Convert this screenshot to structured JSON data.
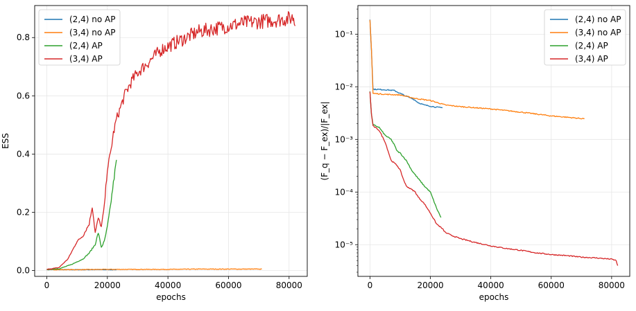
{
  "chart_data": [
    {
      "type": "line",
      "xlabel": "epochs",
      "ylabel": "ESS",
      "xlim": [
        -4000,
        86000
      ],
      "ylim": [
        -0.02,
        0.91
      ],
      "xticks": [
        0,
        20000,
        40000,
        60000,
        80000
      ],
      "xtick_labels": [
        "0",
        "20000",
        "40000",
        "60000",
        "80000"
      ],
      "yticks": [
        0.0,
        0.2,
        0.4,
        0.6,
        0.8
      ],
      "ytick_labels": [
        "0.0",
        "0.2",
        "0.4",
        "0.6",
        "0.8"
      ],
      "grid": true,
      "legend_position": "top-left",
      "series": [
        {
          "name": "(2,4) no AP",
          "color": "#1f77b4",
          "x": [
            0,
            5000,
            10000,
            15000,
            20000,
            23000
          ],
          "y": [
            0.003,
            0.003,
            0.003,
            0.003,
            0.003,
            0.003
          ]
        },
        {
          "name": "(3,4) no AP",
          "color": "#ff7f0e",
          "x": [
            0,
            10000,
            20000,
            30000,
            40000,
            50000,
            60000,
            71000
          ],
          "y": [
            0.003,
            0.003,
            0.004,
            0.004,
            0.004,
            0.005,
            0.005,
            0.005
          ]
        },
        {
          "name": "(2,4) AP",
          "color": "#2ca02c",
          "x": [
            0,
            4000,
            8000,
            12000,
            14000,
            16000,
            17000,
            18000,
            19000,
            20000,
            21000,
            22000,
            23000
          ],
          "y": [
            0.004,
            0.006,
            0.02,
            0.04,
            0.06,
            0.09,
            0.13,
            0.08,
            0.1,
            0.15,
            0.22,
            0.3,
            0.38
          ]
        },
        {
          "name": "(3,4) AP",
          "color": "#d62728",
          "x": [
            0,
            4000,
            7000,
            10000,
            12000,
            14000,
            15000,
            16000,
            17000,
            18000,
            19000,
            20000,
            21000,
            22000,
            23000,
            24000,
            25000,
            26000,
            27000,
            28000,
            30000,
            32000,
            35000,
            38000,
            42000,
            46000,
            50000,
            55000,
            60000,
            65000,
            70000,
            75000,
            80000,
            81500,
            82000
          ],
          "y": [
            0.004,
            0.01,
            0.04,
            0.1,
            0.12,
            0.16,
            0.22,
            0.13,
            0.18,
            0.15,
            0.22,
            0.35,
            0.4,
            0.47,
            0.52,
            0.55,
            0.58,
            0.61,
            0.63,
            0.65,
            0.68,
            0.7,
            0.73,
            0.76,
            0.78,
            0.8,
            0.82,
            0.83,
            0.84,
            0.85,
            0.855,
            0.86,
            0.865,
            0.87,
            0.84
          ]
        }
      ]
    },
    {
      "type": "line",
      "xlabel": "epochs",
      "ylabel": "(F_q − F_ex)/|F_ex|",
      "yscale": "log",
      "xlim": [
        -4000,
        86000
      ],
      "ylim": [
        2.5e-06,
        0.35
      ],
      "xticks": [
        0,
        20000,
        40000,
        60000,
        80000
      ],
      "xtick_labels": [
        "0",
        "20000",
        "40000",
        "60000",
        "80000"
      ],
      "yticks": [
        1e-05,
        0.0001,
        0.001,
        0.01,
        0.1
      ],
      "ytick_labels": [
        "10⁻⁵",
        "10⁻⁴",
        "10⁻³",
        "10⁻²",
        "10⁻¹"
      ],
      "grid": true,
      "legend_position": "top-right",
      "series": [
        {
          "name": "(2,4) no AP",
          "color": "#1f77b4",
          "x": [
            0,
            500,
            1000,
            5000,
            8000,
            10000,
            12000,
            14000,
            15000,
            16000,
            18000,
            20000,
            22000,
            24000
          ],
          "y": [
            0.19,
            0.05,
            0.009,
            0.0088,
            0.0085,
            0.0075,
            0.0066,
            0.006,
            0.0055,
            0.005,
            0.0045,
            0.0043,
            0.0041,
            0.004
          ]
        },
        {
          "name": "(3,4) no AP",
          "color": "#ff7f0e",
          "x": [
            0,
            500,
            1000,
            5000,
            10000,
            15000,
            20000,
            25000,
            30000,
            40000,
            50000,
            60000,
            70000,
            71000
          ],
          "y": [
            0.19,
            0.05,
            0.0075,
            0.0072,
            0.007,
            0.006,
            0.0055,
            0.0045,
            0.0042,
            0.0038,
            0.0033,
            0.0028,
            0.0025,
            0.0025
          ]
        },
        {
          "name": "(2,4) AP",
          "color": "#2ca02c",
          "x": [
            0,
            500,
            1000,
            3000,
            5000,
            7000,
            8000,
            9000,
            10000,
            12000,
            14000,
            16000,
            18000,
            20000,
            22000,
            23000,
            23500
          ],
          "y": [
            0.008,
            0.003,
            0.0019,
            0.0017,
            0.0012,
            0.001,
            0.0008,
            0.0006,
            0.00055,
            0.0004,
            0.00025,
            0.00018,
            0.00013,
            0.0001,
            5e-05,
            3.8e-05,
            3.3e-05
          ]
        },
        {
          "name": "(3,4) AP",
          "color": "#d62728",
          "x": [
            0,
            500,
            1000,
            3000,
            5000,
            6000,
            7000,
            9000,
            10000,
            11000,
            12000,
            14000,
            15000,
            16000,
            18000,
            20000,
            22000,
            24000,
            25000,
            27000,
            30000,
            35000,
            40000,
            45000,
            50000,
            55000,
            60000,
            65000,
            70000,
            75000,
            80000,
            81500,
            82000
          ],
          "y": [
            0.008,
            0.003,
            0.0018,
            0.0015,
            0.0009,
            0.0006,
            0.0004,
            0.00032,
            0.00026,
            0.00018,
            0.00013,
            0.00011,
            0.0001,
            8e-05,
            6e-05,
            4e-05,
            2.5e-05,
            2e-05,
            1.7e-05,
            1.5e-05,
            1.3e-05,
            1.1e-05,
            9.5e-06,
            8.5e-06,
            7.8e-06,
            7e-06,
            6.5e-06,
            6.2e-06,
            5.8e-06,
            5.6e-06,
            5.3e-06,
            5e-06,
            4e-06
          ]
        }
      ]
    }
  ]
}
